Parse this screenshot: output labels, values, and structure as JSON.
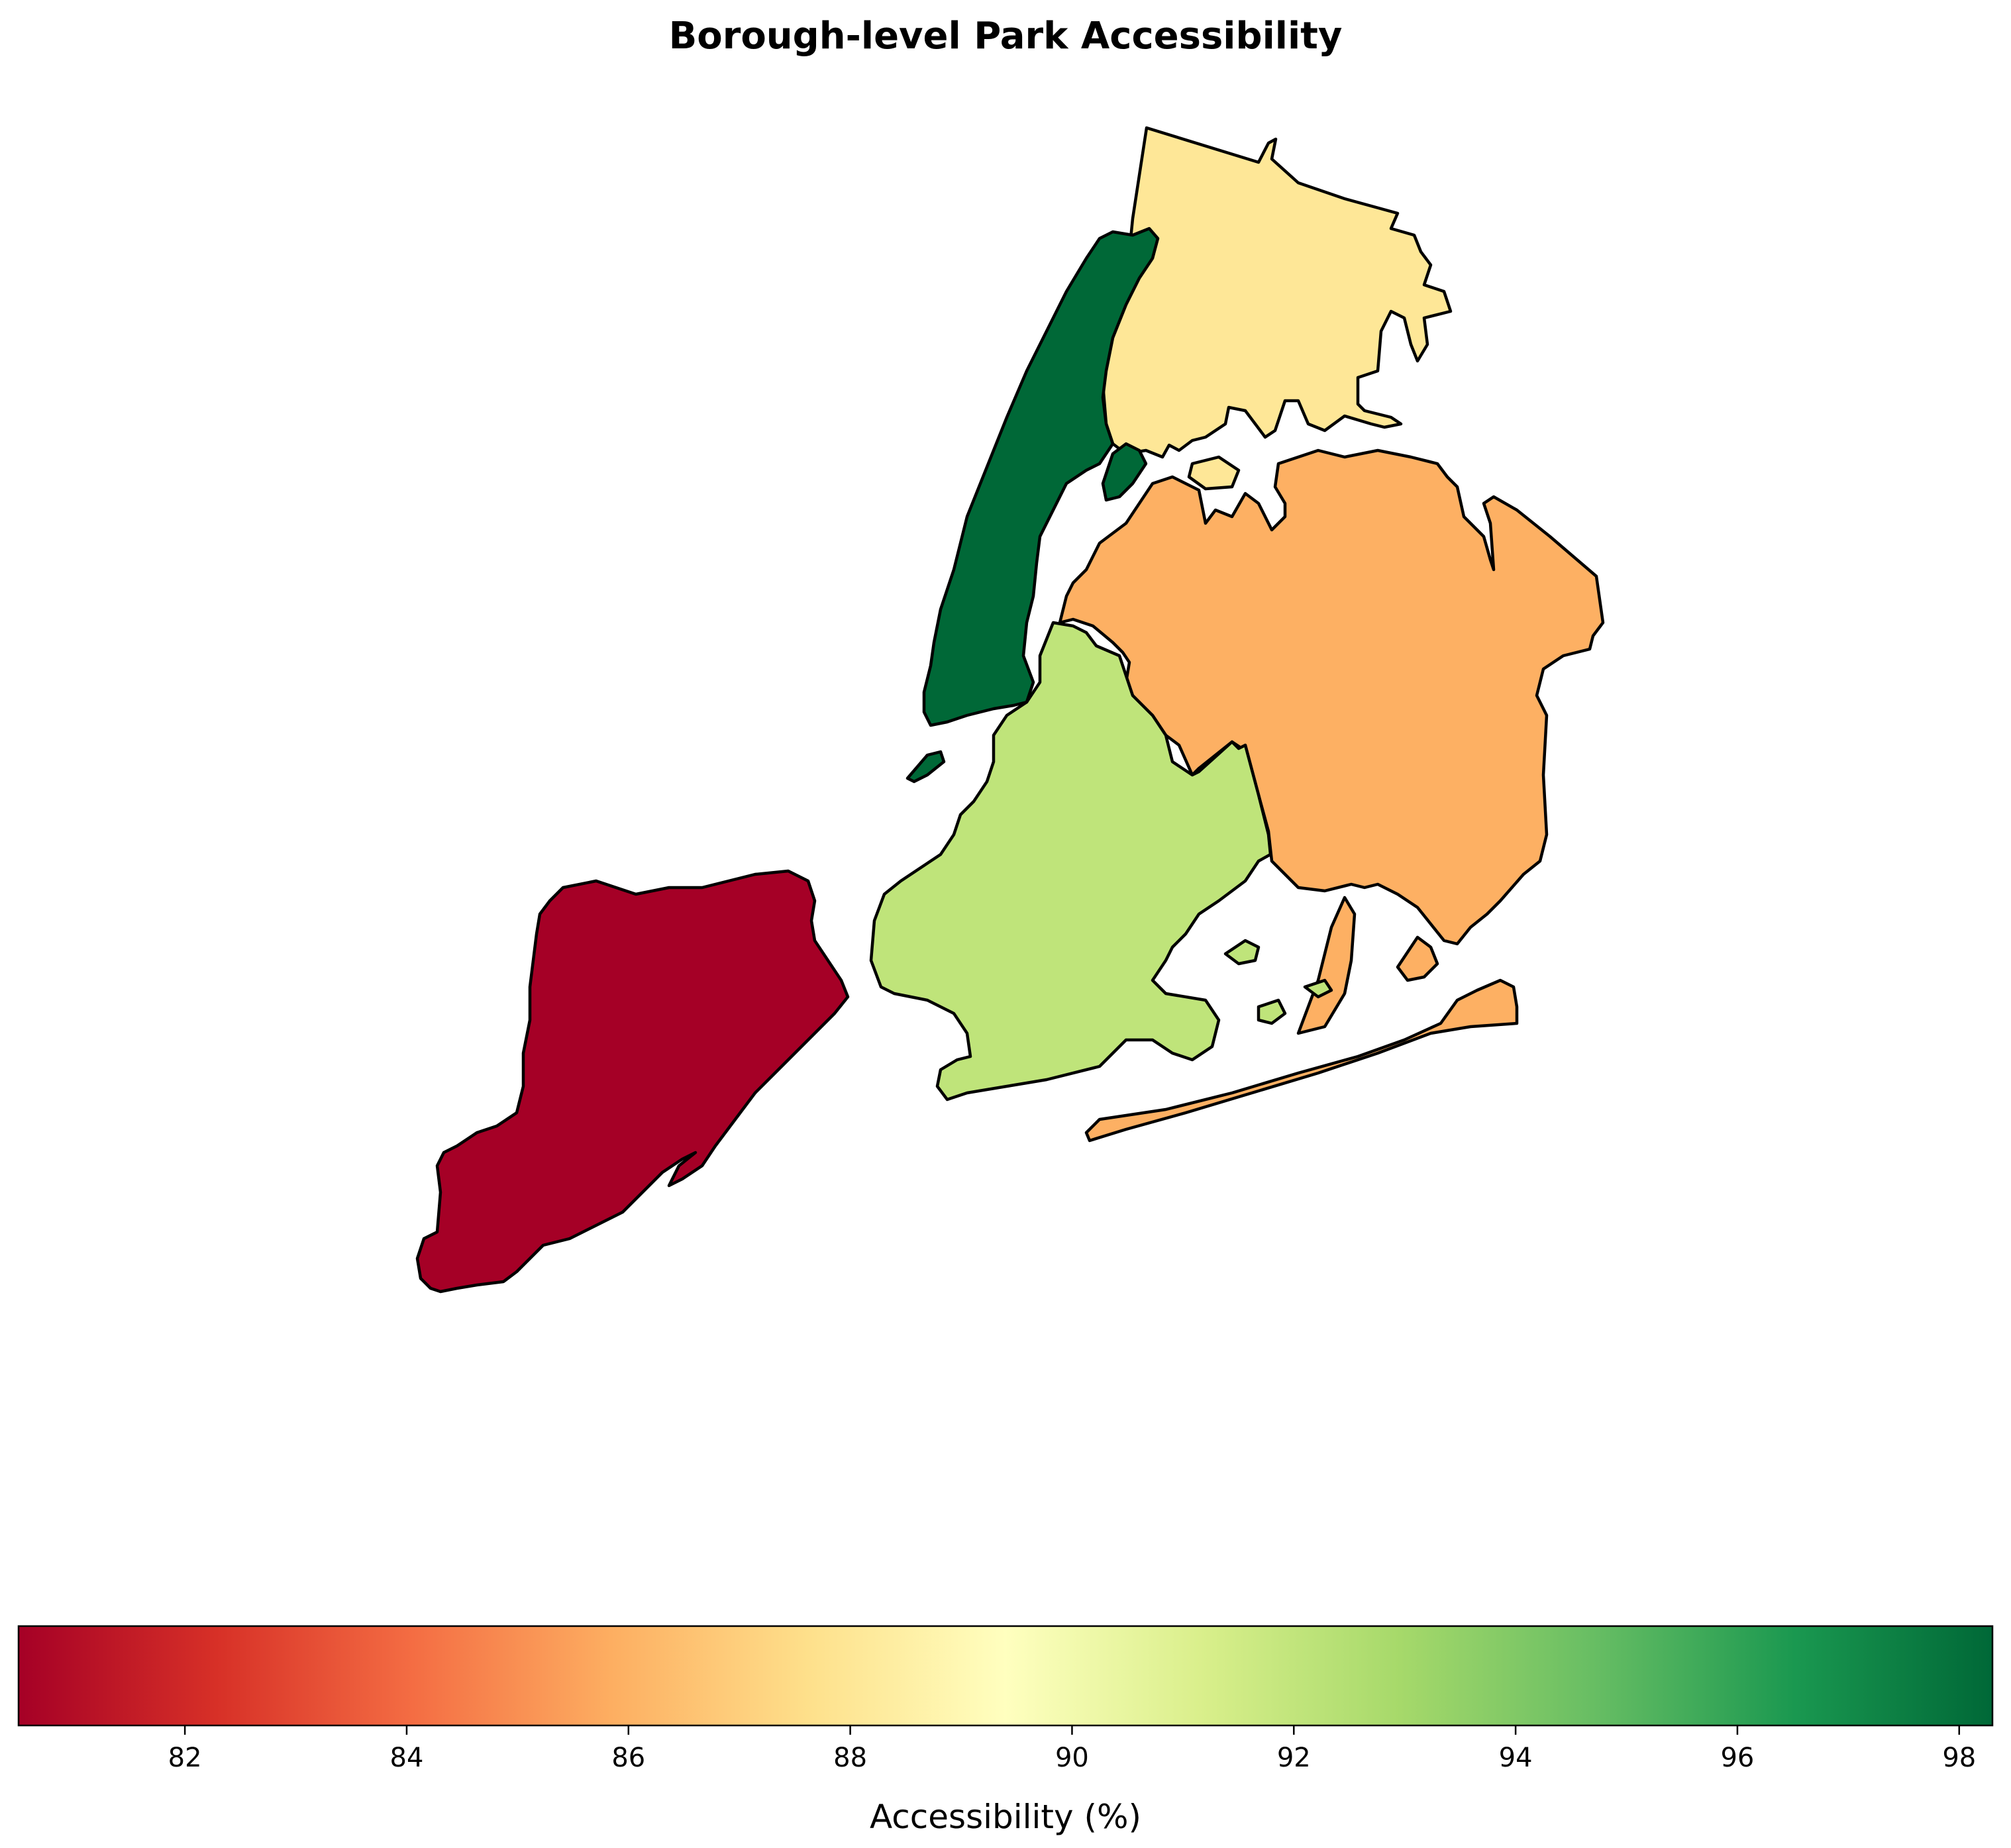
{
  "title": "Borough-level Park Accessibility",
  "colorbar": {
    "label": "Accessibility (%)",
    "min": 80.5,
    "max": 98.3,
    "ticks": [
      "82",
      "84",
      "86",
      "88",
      "90",
      "92",
      "94",
      "96",
      "98"
    ],
    "colormap": "RdYlGn"
  },
  "boroughs": [
    {
      "id": "staten-island",
      "color": "#a50026",
      "value": 80.5
    },
    {
      "id": "queens",
      "color": "#fdb063",
      "value": 86.0
    },
    {
      "id": "bronx",
      "color": "#fee797",
      "value": 88.0
    },
    {
      "id": "brooklyn",
      "color": "#bfe47a",
      "value": 91.8
    },
    {
      "id": "manhattan",
      "color": "#006837",
      "value": 98.3
    }
  ],
  "colors": {
    "staten_island": "#a50026",
    "queens": "#fdb063",
    "bronx": "#fee797",
    "brooklyn": "#bfe47a",
    "manhattan": "#006837"
  }
}
